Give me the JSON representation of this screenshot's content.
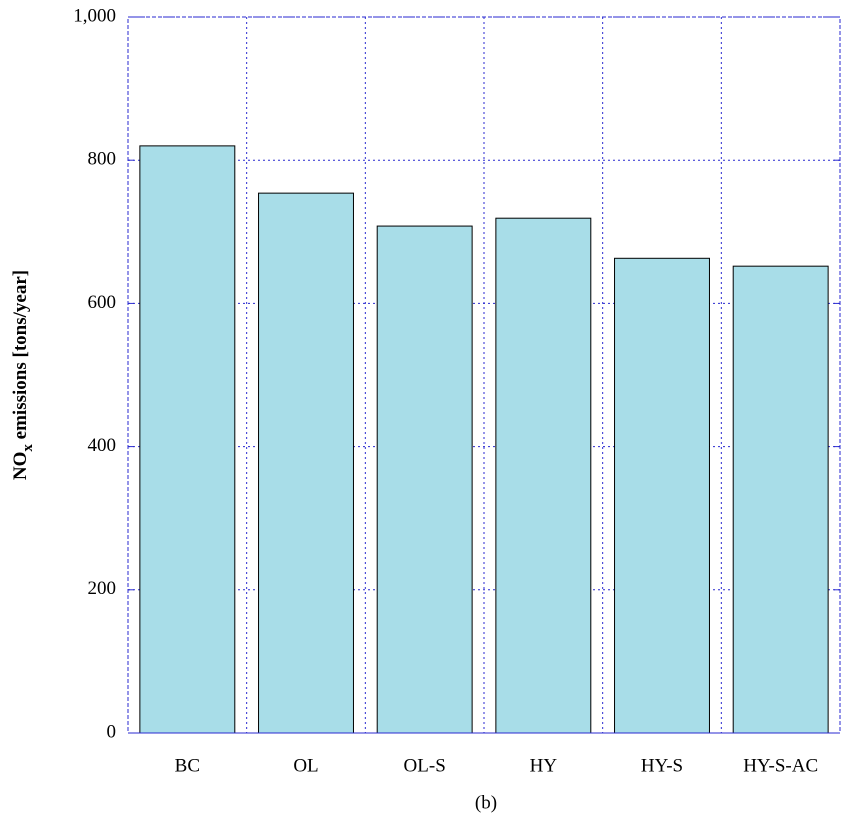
{
  "chart_data": {
    "type": "bar",
    "ylabel": {
      "main": "NO",
      "sub": "x",
      "rest": " emissions [tons/year]"
    },
    "caption": "(b)",
    "categories": [
      "BC",
      "OL",
      "OL-S",
      "HY",
      "HY-S",
      "HY-S-AC"
    ],
    "values": [
      820,
      754,
      708,
      719,
      663,
      652
    ],
    "color": "#a8dde8",
    "ylim": [
      0,
      1000
    ],
    "yticks": [
      0,
      200,
      400,
      600,
      800,
      {
        "value": 1000,
        "label": "1,000"
      }
    ],
    "grid": true
  }
}
